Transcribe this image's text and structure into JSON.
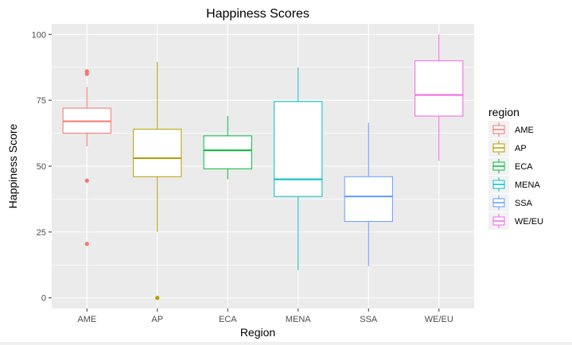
{
  "chart_data": {
    "type": "boxplot",
    "title": "Happiness Scores",
    "xlabel": "Region",
    "ylabel": "Happiness Score",
    "ylim": [
      -4,
      104
    ],
    "yticks": [
      0,
      25,
      50,
      75,
      100
    ],
    "grid": true,
    "legend": {
      "title": "region",
      "placement": "right"
    },
    "categories": [
      "AME",
      "AP",
      "ECA",
      "MENA",
      "SSA",
      "WE/EU"
    ],
    "series": [
      {
        "name": "AME",
        "color": "#F8766D",
        "whisker_low": 57.5,
        "q1": 62.5,
        "median": 67,
        "q3": 72,
        "whisker_high": 80,
        "outliers": [
          86,
          85,
          44.5,
          20.5
        ]
      },
      {
        "name": "AP",
        "color": "#B79F00",
        "whisker_low": 25,
        "q1": 46,
        "median": 53,
        "q3": 64,
        "whisker_high": 89.5,
        "outliers": [
          0
        ]
      },
      {
        "name": "ECA",
        "color": "#00BA38",
        "whisker_low": 45,
        "q1": 49,
        "median": 56,
        "q3": 61.5,
        "whisker_high": 69,
        "outliers": []
      },
      {
        "name": "MENA",
        "color": "#00BFC4",
        "whisker_low": 10.5,
        "q1": 38.5,
        "median": 45,
        "q3": 74.5,
        "whisker_high": 87.5,
        "outliers": []
      },
      {
        "name": "SSA",
        "color": "#619CFF",
        "whisker_low": 12,
        "q1": 29,
        "median": 38.5,
        "q3": 46,
        "whisker_high": 66.5,
        "outliers": []
      },
      {
        "name": "WE/EU",
        "color": "#F564E3",
        "whisker_low": 52,
        "q1": 69,
        "median": 77,
        "q3": 90,
        "whisker_high": 100,
        "outliers": []
      }
    ]
  }
}
